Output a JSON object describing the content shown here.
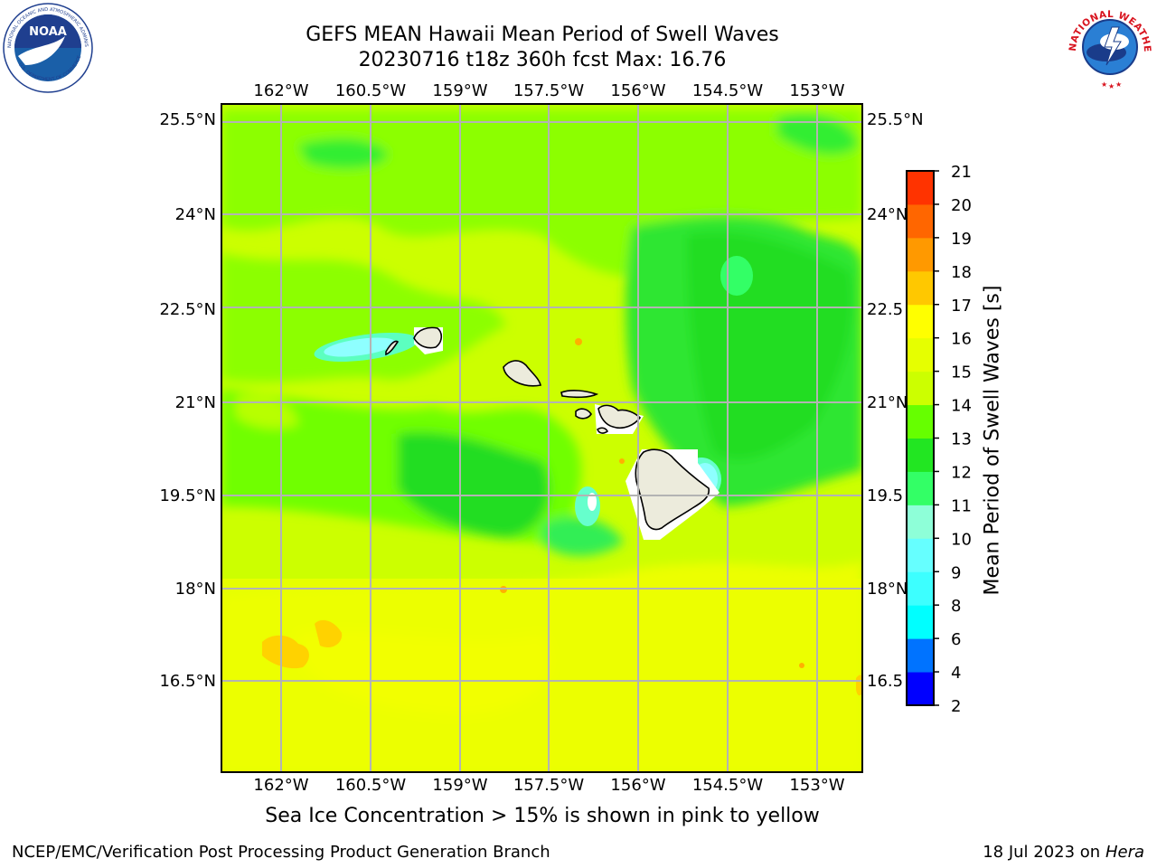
{
  "title": {
    "line1": "GEFS MEAN Hawaii Mean Period of Swell Waves",
    "line2": "20230716 t18z 360h fcst   Max: 16.76"
  },
  "logos": {
    "left": "noaa-logo",
    "right": "national-weather-service-logo",
    "noaa_text": "NOAA",
    "noaa_ring_text": "NATIONAL OCEANIC AND ATMOSPHERIC ADMINISTRATION",
    "noaa_ring_bottom": "U.S. DEPARTMENT OF COMMERCE",
    "nws_ring_text": "NATIONAL WEATHER SERVICE"
  },
  "map": {
    "top_lon_labels": [
      "162°W",
      "160.5°W",
      "159°W",
      "157.5°W",
      "156°W",
      "154.5°W",
      "153°W"
    ],
    "bottom_lon_labels": [
      "162°W",
      "160.5°W",
      "159°W",
      "157.5°W",
      "156°W",
      "154.5°W",
      "153°W"
    ],
    "left_lat_labels": [
      "25.5°N",
      "24°N",
      "22.5°N",
      "21°N",
      "19.5°N",
      "18°N",
      "16.5°N"
    ],
    "right_lat_labels": [
      "25.5°N",
      "24°N",
      "22.5",
      "21°N",
      "19.5",
      "18°N",
      "16.5"
    ],
    "lon_range": [
      -163.0,
      -152.3
    ],
    "lat_range": [
      14.9,
      25.7
    ],
    "gridlines": true,
    "islands": [
      "Niihau",
      "Kauai",
      "Oahu",
      "Molokai",
      "Lanai",
      "Maui",
      "Kahoolawe",
      "Hawaii"
    ]
  },
  "colorbar": {
    "label": "Mean Period of Swell Waves [s]",
    "ticks": [
      "2",
      "4",
      "6",
      "8",
      "9",
      "10",
      "11",
      "12",
      "13",
      "14",
      "15",
      "16",
      "17",
      "18",
      "19",
      "20",
      "21"
    ],
    "colors": [
      "#0000ff",
      "#0073ff",
      "#00ffff",
      "#3dffff",
      "#66ffff",
      "#8effd8",
      "#33ff66",
      "#22e622",
      "#66ff00",
      "#ccff00",
      "#e6ff00",
      "#ffff00",
      "#ffc800",
      "#ff9900",
      "#ff6600",
      "#ff3300",
      "#ff0000"
    ]
  },
  "subtitle": "Sea Ice Concentration > 15% is shown in pink to yellow",
  "footer": {
    "left": "NCEP/EMC/Verification Post Processing Product Generation Branch",
    "right_date": "18 Jul 2023 on ",
    "right_host": "Hera"
  }
}
